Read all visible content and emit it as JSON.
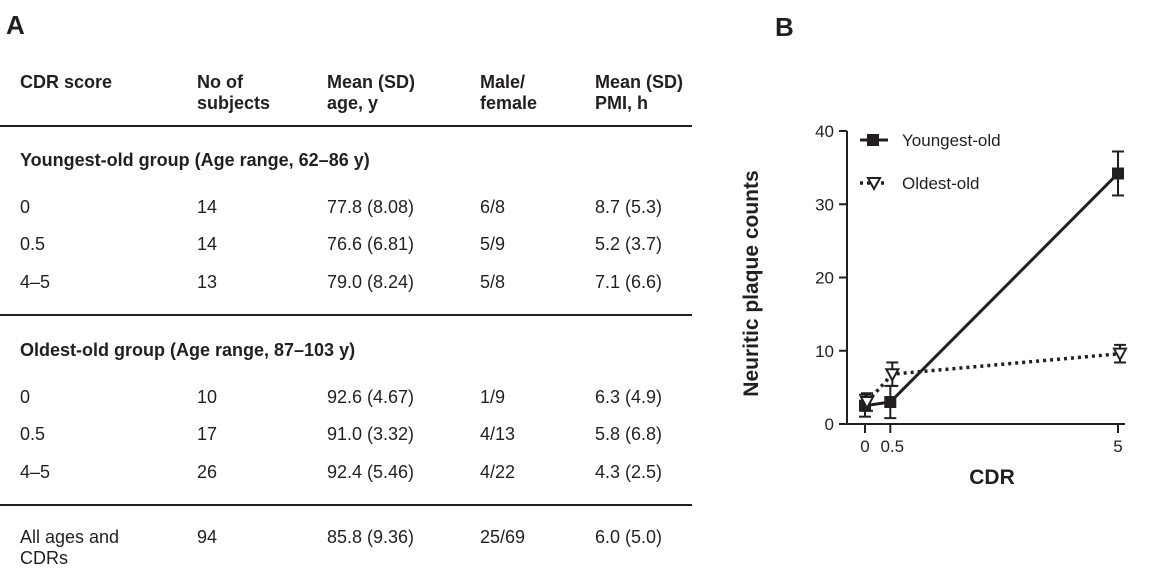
{
  "panel_a": {
    "letter": "A",
    "headers": [
      [
        "CDR score"
      ],
      [
        "No of",
        "subjects"
      ],
      [
        "Mean (SD)",
        "age, y"
      ],
      [
        "Male/",
        "female"
      ],
      [
        "Mean (SD)",
        "PMI, h"
      ]
    ],
    "groups": [
      {
        "title": "Youngest-old group (Age range, 62–86 y)",
        "rows": [
          [
            "0",
            "14",
            "77.8 (8.08)",
            "6/8",
            "8.7 (5.3)"
          ],
          [
            "0.5",
            "14",
            "76.6 (6.81)",
            "5/9",
            "5.2 (3.7)"
          ],
          [
            "4–5",
            "13",
            "79.0 (8.24)",
            "5/8",
            "7.1 (6.6)"
          ]
        ]
      },
      {
        "title": "Oldest-old group (Age range, 87–103 y)",
        "rows": [
          [
            "0",
            "10",
            "92.6 (4.67)",
            "1/9",
            "6.3 (4.9)"
          ],
          [
            "0.5",
            "17",
            "91.0 (3.32)",
            "4/13",
            "5.8 (6.8)"
          ],
          [
            "4–5",
            "26",
            "92.4 (5.46)",
            "4/22",
            "4.3 (2.5)"
          ]
        ]
      }
    ],
    "total_row": {
      "label_lines": [
        "All ages and",
        "CDRs"
      ],
      "values": [
        "94",
        "85.8 (9.36)",
        "25/69",
        "6.0 (5.0)"
      ]
    }
  },
  "panel_b": {
    "letter": "B"
  },
  "chart_data": {
    "type": "line",
    "xlabel": "CDR",
    "ylabel": "Neuritic plaque counts",
    "xlim": [
      0,
      5.6
    ],
    "ylim": [
      0,
      40
    ],
    "xticks": [
      0,
      0.5,
      5
    ],
    "xtick_labels": [
      "0",
      "0.5",
      "5"
    ],
    "yticks": [
      0,
      10,
      20,
      30,
      40
    ],
    "legend_position": "top-left",
    "series": [
      {
        "name": "Youngest-old",
        "marker": "filled-square",
        "line": "solid",
        "color": "#231f20",
        "x": [
          0,
          0.5,
          5
        ],
        "y": [
          2.5,
          3.0,
          34.2
        ],
        "err": [
          1.5,
          2.2,
          3.0
        ]
      },
      {
        "name": "Oldest-old",
        "marker": "open-triangle-down",
        "line": "dotted",
        "color": "#231f20",
        "x": [
          0,
          0.5,
          5
        ],
        "y": [
          3.0,
          6.8,
          9.6
        ],
        "err": [
          1.2,
          1.6,
          1.2
        ]
      }
    ]
  }
}
